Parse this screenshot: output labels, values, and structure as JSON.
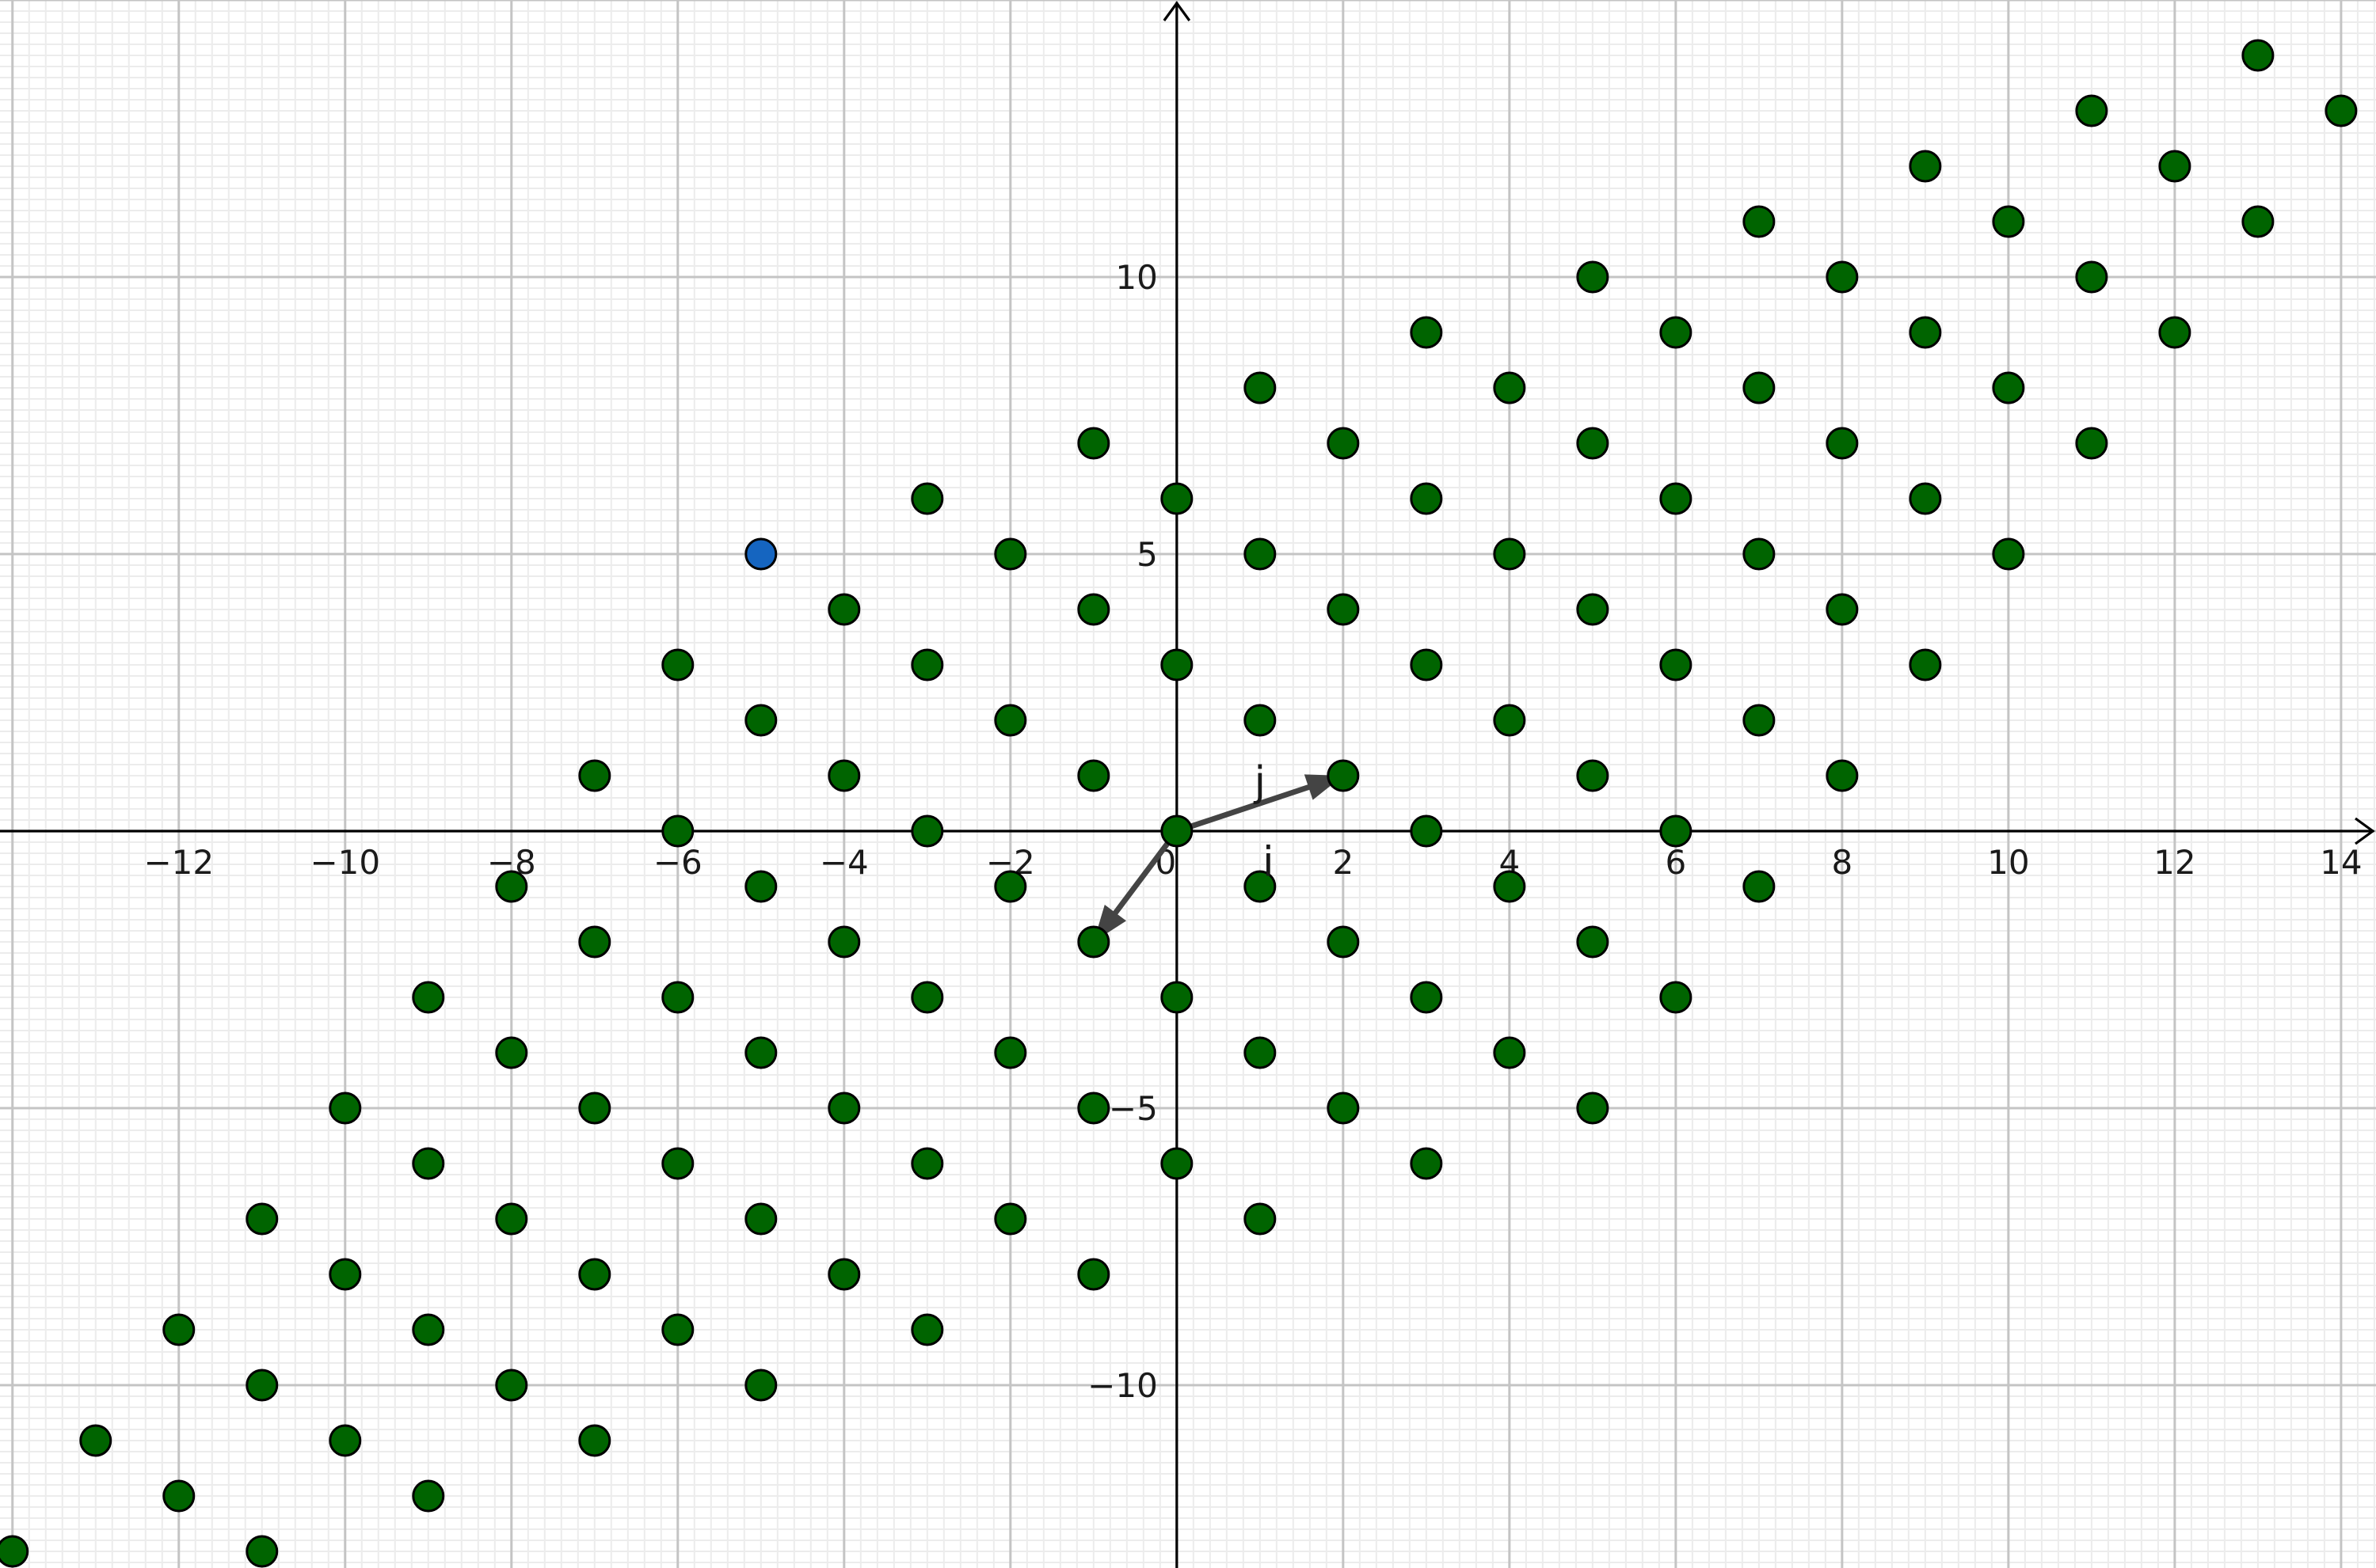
{
  "chart_data": {
    "type": "scatter",
    "title": "",
    "xlabel": "",
    "ylabel": "",
    "xlim": [
      -14.15,
      14.42
    ],
    "ylim": [
      -13.3,
      15.0
    ],
    "grid": true,
    "x_ticks": [
      -12,
      -10,
      -8,
      -6,
      -4,
      -2,
      0,
      2,
      4,
      6,
      8,
      10,
      12,
      14
    ],
    "y_ticks": [
      -10,
      -5,
      5,
      10
    ],
    "x_tick_labels": [
      "−12",
      "−10",
      "−8",
      "−6",
      "−4",
      "−2",
      "0",
      "2",
      "4",
      "6",
      "8",
      "10",
      "12",
      "14"
    ],
    "y_tick_labels": [
      "−10",
      "−5",
      "5",
      "10"
    ],
    "colors": {
      "point_fill": "#006400",
      "highlight_fill": "#1565c0",
      "point_stroke": "#000000",
      "vector": "#444444",
      "grid_major": "#c4c4c4",
      "grid_minor": "#ececec"
    },
    "series": [
      {
        "points": [
          [
            -14,
            -13
          ],
          [
            -13,
            -11
          ],
          [
            -12,
            -12
          ],
          [
            -12,
            -9
          ],
          [
            -11,
            -13
          ],
          [
            -11,
            -10
          ],
          [
            -11,
            -7
          ],
          [
            -10,
            -11
          ],
          [
            -10,
            -8
          ],
          [
            -10,
            -5
          ],
          [
            -9,
            -12
          ],
          [
            -9,
            -9
          ],
          [
            -9,
            -6
          ],
          [
            -9,
            -3
          ],
          [
            -8,
            -10
          ],
          [
            -8,
            -7
          ],
          [
            -8,
            -4
          ],
          [
            -8,
            -1
          ],
          [
            -7,
            -11
          ],
          [
            -7,
            -8
          ],
          [
            -7,
            -5
          ],
          [
            -7,
            -2
          ],
          [
            -7,
            1
          ],
          [
            -6,
            -9
          ],
          [
            -6,
            -6
          ],
          [
            -6,
            -3
          ],
          [
            -6,
            0
          ],
          [
            -6,
            3
          ],
          [
            -5,
            -10
          ],
          [
            -5,
            -7
          ],
          [
            -5,
            -4
          ],
          [
            -5,
            -1
          ],
          [
            -5,
            2
          ],
          [
            -4,
            -8
          ],
          [
            -4,
            -5
          ],
          [
            -4,
            -2
          ],
          [
            -4,
            1
          ],
          [
            -4,
            4
          ],
          [
            -3,
            -9
          ],
          [
            -3,
            -6
          ],
          [
            -3,
            -3
          ],
          [
            -3,
            0
          ],
          [
            -3,
            3
          ],
          [
            -3,
            6
          ],
          [
            -2,
            -7
          ],
          [
            -2,
            -4
          ],
          [
            -2,
            -1
          ],
          [
            -2,
            2
          ],
          [
            -2,
            5
          ],
          [
            -1,
            -8
          ],
          [
            -1,
            -5
          ],
          [
            -1,
            -2
          ],
          [
            -1,
            1
          ],
          [
            -1,
            4
          ],
          [
            -1,
            7
          ],
          [
            0,
            -6
          ],
          [
            0,
            -3
          ],
          [
            0,
            0
          ],
          [
            0,
            3
          ],
          [
            0,
            6
          ],
          [
            1,
            -7
          ],
          [
            1,
            -4
          ],
          [
            1,
            -1
          ],
          [
            1,
            2
          ],
          [
            1,
            5
          ],
          [
            1,
            8
          ],
          [
            2,
            -5
          ],
          [
            2,
            -2
          ],
          [
            2,
            1
          ],
          [
            2,
            4
          ],
          [
            2,
            7
          ],
          [
            3,
            -6
          ],
          [
            3,
            -3
          ],
          [
            3,
            0
          ],
          [
            3,
            3
          ],
          [
            3,
            6
          ],
          [
            3,
            9
          ],
          [
            4,
            -4
          ],
          [
            4,
            -1
          ],
          [
            4,
            2
          ],
          [
            4,
            5
          ],
          [
            4,
            8
          ],
          [
            5,
            -5
          ],
          [
            5,
            -2
          ],
          [
            5,
            1
          ],
          [
            5,
            4
          ],
          [
            5,
            7
          ],
          [
            5,
            10
          ],
          [
            6,
            -3
          ],
          [
            6,
            0
          ],
          [
            6,
            3
          ],
          [
            6,
            6
          ],
          [
            6,
            9
          ],
          [
            7,
            -1
          ],
          [
            7,
            2
          ],
          [
            7,
            5
          ],
          [
            7,
            8
          ],
          [
            7,
            11
          ],
          [
            8,
            1
          ],
          [
            8,
            4
          ],
          [
            8,
            7
          ],
          [
            8,
            10
          ],
          [
            9,
            3
          ],
          [
            9,
            6
          ],
          [
            9,
            9
          ],
          [
            9,
            12
          ],
          [
            10,
            5
          ],
          [
            10,
            8
          ],
          [
            10,
            11
          ],
          [
            11,
            7
          ],
          [
            11,
            10
          ],
          [
            11,
            13
          ],
          [
            12,
            9
          ],
          [
            12,
            12
          ],
          [
            13,
            11
          ],
          [
            13,
            14
          ],
          [
            14,
            13
          ]
        ]
      },
      {
        "highlight": true,
        "points": [
          [
            -5,
            5
          ]
        ]
      }
    ],
    "vectors": [
      {
        "name": "j",
        "from": [
          0,
          0
        ],
        "to": [
          2,
          1
        ]
      },
      {
        "name": "i",
        "from": [
          0,
          0
        ],
        "to": [
          -1,
          -2
        ]
      }
    ],
    "annotations": [
      {
        "text": "j",
        "x": 1.0,
        "y": 0.9
      },
      {
        "text": "i",
        "x": 1.1,
        "y": -0.55
      }
    ]
  }
}
